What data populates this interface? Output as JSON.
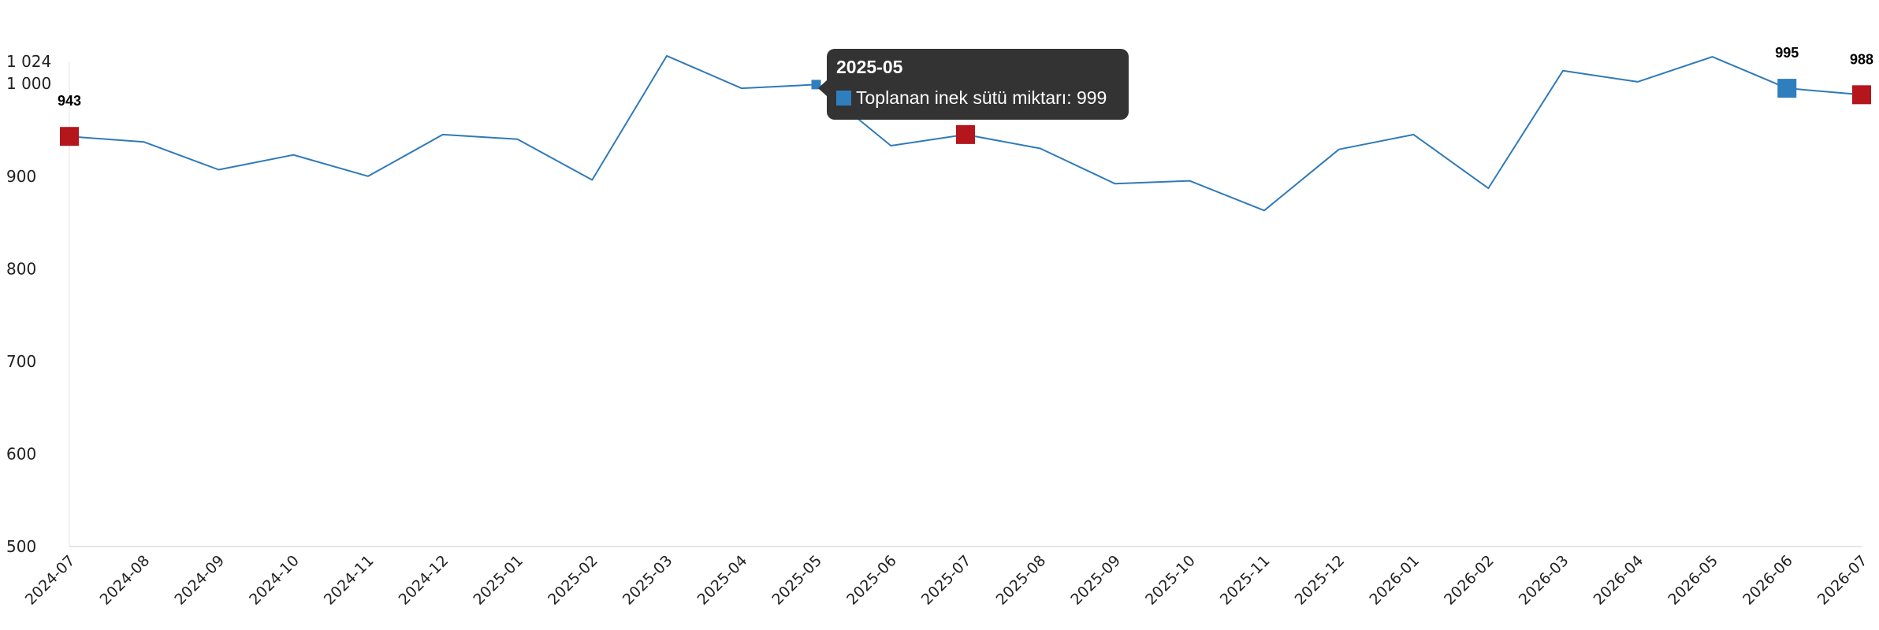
{
  "chart_data": {
    "type": "line",
    "categories": [
      "2024-07",
      "2024-08",
      "2024-09",
      "2024-10",
      "2024-11",
      "2024-12",
      "2025-01",
      "2025-02",
      "2025-03",
      "2025-04",
      "2025-05",
      "2025-06",
      "2025-07",
      "2025-08",
      "2025-09",
      "2025-10",
      "2025-11",
      "2025-12",
      "2026-01",
      "2026-02",
      "2026-03",
      "2026-04",
      "2026-05",
      "2026-06",
      "2026-07"
    ],
    "series": [
      {
        "values": [
          943,
          937,
          907,
          923,
          900,
          945,
          940,
          896,
          1030,
          995,
          999,
          933,
          945,
          930,
          892,
          895,
          863,
          929,
          945,
          887,
          1014,
          1002,
          1029,
          995,
          988
        ]
      }
    ],
    "ylim": [
      500,
      1024
    ],
    "yticks": [
      "500",
      "600",
      "700",
      "800",
      "900",
      "1 000",
      "1 024"
    ],
    "ytick_values": [
      500,
      600,
      700,
      800,
      900,
      1000,
      1024
    ],
    "grid": false,
    "highlighted_points": [
      {
        "index": 0,
        "label": "943",
        "color": "#b5161b"
      },
      {
        "index": 12,
        "label": "945",
        "color": "#b5161b"
      },
      {
        "index": 23,
        "label": "995",
        "color": "#2f7fbf"
      },
      {
        "index": 24,
        "label": "988",
        "color": "#b5161b"
      }
    ],
    "line_color": "#2f7ab8",
    "tooltip": {
      "index": 10,
      "title": "2025-05",
      "series_name": "Toplanan inek sütü miktarı",
      "value": "999",
      "text": "Toplanan inek sütü miktarı: 999",
      "swatch_color": "#2f7fbf"
    }
  }
}
